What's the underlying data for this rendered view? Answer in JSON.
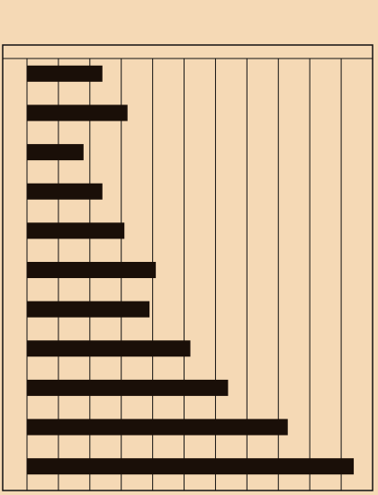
{
  "chart_data": {
    "type": "barh",
    "values": [
      2.4,
      3.2,
      1.8,
      2.4,
      3.1,
      4.1,
      3.9,
      5.2,
      6.4,
      8.3,
      10.4
    ],
    "color": "#1a0f08",
    "xlim": [
      0,
      11
    ],
    "xticks": [
      0,
      1,
      2,
      3,
      4,
      5,
      6,
      7,
      8,
      9,
      10
    ],
    "grid": true
  }
}
